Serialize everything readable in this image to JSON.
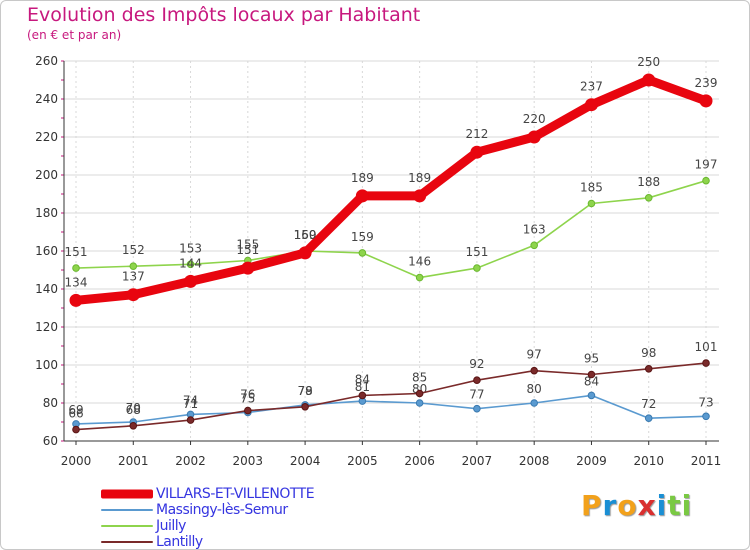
{
  "header": {
    "title": "Evolution des Impôts locaux par Habitant",
    "subtitle": "(en € et par an)"
  },
  "logo": {
    "text": "Proxiti",
    "colors": [
      "#f2a11b",
      "#1a8fd4",
      "#f2a11b",
      "#d92f2f",
      "#1a8fd4",
      "#7ac943",
      "#7ac943"
    ]
  },
  "colors": {
    "title": "#c7187e",
    "axis": "#333333",
    "grid": "#d8d8d8"
  },
  "chart_data": {
    "type": "line",
    "title": "Evolution des Impôts locaux par Habitant",
    "subtitle": "(en € et par an)",
    "xlabel": "",
    "ylabel": "",
    "categories": [
      "2000",
      "2001",
      "2002",
      "2003",
      "2004",
      "2005",
      "2006",
      "2007",
      "2008",
      "2009",
      "2010",
      "2011"
    ],
    "ylim": [
      60,
      260
    ],
    "yticks": [
      60,
      80,
      100,
      120,
      140,
      160,
      180,
      200,
      220,
      240,
      260
    ],
    "grid": true,
    "legend_position": "bottom-left",
    "series": [
      {
        "name": "VILLARS-ET-VILLENOTTE",
        "color": "#e8050f",
        "values": [
          134,
          137,
          144,
          151,
          159,
          189,
          189,
          212,
          220,
          237,
          250,
          239
        ]
      },
      {
        "name": "Massingy-lès-Semur",
        "color": "#5a9ad0",
        "values": [
          69,
          70,
          74,
          75,
          79,
          81,
          80,
          77,
          80,
          84,
          72,
          73
        ]
      },
      {
        "name": "Juilly",
        "color": "#8ed44c",
        "values": [
          151,
          152,
          153,
          155,
          160,
          159,
          146,
          151,
          163,
          185,
          188,
          197
        ]
      },
      {
        "name": "Lantilly",
        "color": "#7a2a2a",
        "values": [
          66,
          68,
          71,
          76,
          78,
          84,
          85,
          92,
          97,
          95,
          98,
          101
        ]
      }
    ]
  }
}
